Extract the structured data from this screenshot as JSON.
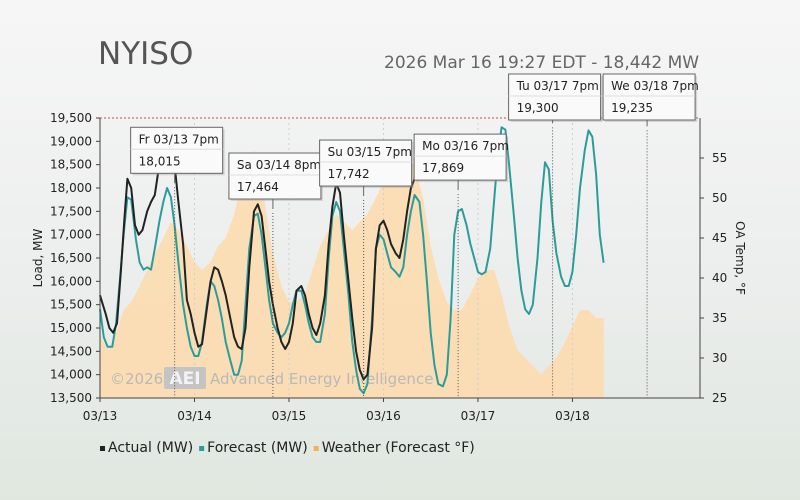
{
  "header": {
    "title": "NYISO",
    "subtitle": "2026 Mar 16 19:27 EDT - 18,442 MW"
  },
  "watermark": {
    "copyright": "©2026",
    "logo_text": "AEI",
    "company": "Advanced Energy Intelligence"
  },
  "chart_data": {
    "type": "line",
    "ylabel": "Load, MW",
    "y2label": "OA Temp, °F",
    "ylim": [
      13500,
      19500
    ],
    "y2lim": [
      25,
      60
    ],
    "y_ticks": [
      "13,500",
      "14,000",
      "14,500",
      "15,000",
      "15,500",
      "16,000",
      "16,500",
      "17,000",
      "17,500",
      "18,000",
      "18,500",
      "19,000",
      "19,500"
    ],
    "y2_ticks": [
      "25",
      "30",
      "35",
      "40",
      "45",
      "50",
      "55"
    ],
    "xlim_days": [
      0,
      6.35
    ],
    "x_ticks": [
      "03/13",
      "03/14",
      "03/15",
      "03/16",
      "03/17",
      "03/18"
    ],
    "legend": [
      {
        "label": "Actual (MW)",
        "color": "#222222"
      },
      {
        "label": "Forecast (MW)",
        "color": "#2a9d9a"
      },
      {
        "label": "Weather (Forecast °F)",
        "color": "#f6b05a"
      }
    ],
    "series": [
      {
        "name": "Actual (MW)",
        "color": "#222222",
        "points": [
          [
            0.0,
            15700
          ],
          [
            0.06,
            15300
          ],
          [
            0.1,
            15000
          ],
          [
            0.14,
            14900
          ],
          [
            0.18,
            15100
          ],
          [
            0.22,
            16200
          ],
          [
            0.26,
            17400
          ],
          [
            0.29,
            18200
          ],
          [
            0.33,
            18000
          ],
          [
            0.37,
            17200
          ],
          [
            0.41,
            17000
          ],
          [
            0.45,
            17100
          ],
          [
            0.5,
            17500
          ],
          [
            0.54,
            17700
          ],
          [
            0.58,
            17850
          ],
          [
            0.62,
            18400
          ],
          [
            0.67,
            18800
          ],
          [
            0.71,
            19000
          ],
          [
            0.75,
            19000
          ],
          [
            0.79,
            18500
          ],
          [
            0.83,
            17700
          ],
          [
            0.88,
            16800
          ],
          [
            0.92,
            15600
          ],
          [
            0.96,
            15300
          ],
          [
            1.0,
            14900
          ],
          [
            1.04,
            14600
          ],
          [
            1.08,
            14650
          ],
          [
            1.13,
            15400
          ],
          [
            1.17,
            16000
          ],
          [
            1.21,
            16300
          ],
          [
            1.25,
            16250
          ],
          [
            1.29,
            16000
          ],
          [
            1.33,
            15700
          ],
          [
            1.38,
            15200
          ],
          [
            1.42,
            14800
          ],
          [
            1.46,
            14600
          ],
          [
            1.5,
            14550
          ],
          [
            1.54,
            15000
          ],
          [
            1.58,
            16300
          ],
          [
            1.63,
            17500
          ],
          [
            1.67,
            17650
          ],
          [
            1.71,
            17400
          ],
          [
            1.75,
            16700
          ],
          [
            1.79,
            16000
          ],
          [
            1.83,
            15500
          ],
          [
            1.88,
            15000
          ],
          [
            1.92,
            14700
          ],
          [
            1.96,
            14550
          ],
          [
            2.0,
            14700
          ],
          [
            2.04,
            15100
          ],
          [
            2.08,
            15800
          ],
          [
            2.13,
            15900
          ],
          [
            2.17,
            15700
          ],
          [
            2.21,
            15300
          ],
          [
            2.25,
            15000
          ],
          [
            2.29,
            14850
          ],
          [
            2.33,
            15100
          ],
          [
            2.38,
            15700
          ],
          [
            2.42,
            16800
          ],
          [
            2.46,
            17600
          ],
          [
            2.5,
            18100
          ],
          [
            2.54,
            17900
          ],
          [
            2.58,
            17000
          ],
          [
            2.63,
            16000
          ],
          [
            2.67,
            15200
          ],
          [
            2.71,
            14500
          ],
          [
            2.75,
            14100
          ],
          [
            2.79,
            13900
          ],
          [
            2.83,
            14000
          ],
          [
            2.88,
            15000
          ],
          [
            2.92,
            16700
          ],
          [
            2.96,
            17200
          ],
          [
            3.0,
            17300
          ],
          [
            3.04,
            17100
          ],
          [
            3.08,
            16800
          ],
          [
            3.13,
            16600
          ],
          [
            3.17,
            16500
          ],
          [
            3.21,
            16900
          ],
          [
            3.25,
            17500
          ],
          [
            3.29,
            18000
          ],
          [
            3.33,
            18200
          ],
          [
            3.36,
            18442
          ]
        ]
      },
      {
        "name": "Forecast (MW)",
        "color": "#2a9d9a",
        "points": [
          [
            0.0,
            15400
          ],
          [
            0.04,
            14800
          ],
          [
            0.08,
            14600
          ],
          [
            0.13,
            14600
          ],
          [
            0.17,
            15100
          ],
          [
            0.21,
            16000
          ],
          [
            0.25,
            17000
          ],
          [
            0.29,
            17800
          ],
          [
            0.33,
            17750
          ],
          [
            0.38,
            16900
          ],
          [
            0.42,
            16400
          ],
          [
            0.46,
            16250
          ],
          [
            0.5,
            16300
          ],
          [
            0.54,
            16250
          ],
          [
            0.58,
            16700
          ],
          [
            0.63,
            17300
          ],
          [
            0.67,
            17700
          ],
          [
            0.71,
            18000
          ],
          [
            0.75,
            17800
          ],
          [
            0.79,
            17200
          ],
          [
            0.83,
            16400
          ],
          [
            0.88,
            15500
          ],
          [
            0.92,
            15000
          ],
          [
            0.96,
            14600
          ],
          [
            1.0,
            14400
          ],
          [
            1.04,
            14400
          ],
          [
            1.08,
            14700
          ],
          [
            1.13,
            15500
          ],
          [
            1.17,
            16000
          ],
          [
            1.21,
            15900
          ],
          [
            1.25,
            15600
          ],
          [
            1.29,
            15200
          ],
          [
            1.33,
            14700
          ],
          [
            1.38,
            14300
          ],
          [
            1.42,
            14000
          ],
          [
            1.46,
            14000
          ],
          [
            1.5,
            14300
          ],
          [
            1.54,
            15500
          ],
          [
            1.58,
            16700
          ],
          [
            1.63,
            17400
          ],
          [
            1.67,
            17450
          ],
          [
            1.71,
            17000
          ],
          [
            1.75,
            16300
          ],
          [
            1.79,
            15600
          ],
          [
            1.83,
            15100
          ],
          [
            1.88,
            14900
          ],
          [
            1.92,
            14800
          ],
          [
            1.96,
            14900
          ],
          [
            2.0,
            15100
          ],
          [
            2.04,
            15500
          ],
          [
            2.08,
            15800
          ],
          [
            2.13,
            15800
          ],
          [
            2.17,
            15500
          ],
          [
            2.21,
            15100
          ],
          [
            2.25,
            14800
          ],
          [
            2.29,
            14700
          ],
          [
            2.33,
            14700
          ],
          [
            2.38,
            15300
          ],
          [
            2.42,
            16500
          ],
          [
            2.46,
            17400
          ],
          [
            2.5,
            17700
          ],
          [
            2.54,
            17500
          ],
          [
            2.58,
            16700
          ],
          [
            2.63,
            15700
          ],
          [
            2.67,
            14700
          ],
          [
            2.71,
            14100
          ],
          [
            2.75,
            13700
          ],
          [
            2.79,
            13600
          ],
          [
            2.83,
            13800
          ],
          [
            2.88,
            15200
          ],
          [
            2.92,
            16700
          ],
          [
            2.96,
            17000
          ],
          [
            3.0,
            16900
          ],
          [
            3.04,
            16600
          ],
          [
            3.08,
            16300
          ],
          [
            3.13,
            16200
          ],
          [
            3.17,
            16100
          ],
          [
            3.21,
            16300
          ],
          [
            3.25,
            17000
          ],
          [
            3.29,
            17500
          ],
          [
            3.33,
            17850
          ],
          [
            3.38,
            17700
          ],
          [
            3.42,
            17000
          ],
          [
            3.46,
            16000
          ],
          [
            3.5,
            14900
          ],
          [
            3.54,
            14200
          ],
          [
            3.58,
            13800
          ],
          [
            3.63,
            13750
          ],
          [
            3.67,
            14000
          ],
          [
            3.71,
            15200
          ],
          [
            3.75,
            17000
          ],
          [
            3.79,
            17500
          ],
          [
            3.83,
            17550
          ],
          [
            3.88,
            17200
          ],
          [
            3.92,
            16800
          ],
          [
            3.96,
            16500
          ],
          [
            4.0,
            16200
          ],
          [
            4.04,
            16150
          ],
          [
            4.08,
            16200
          ],
          [
            4.13,
            16700
          ],
          [
            4.17,
            17700
          ],
          [
            4.21,
            18700
          ],
          [
            4.25,
            19300
          ],
          [
            4.29,
            19250
          ],
          [
            4.33,
            18500
          ],
          [
            4.38,
            17400
          ],
          [
            4.42,
            16500
          ],
          [
            4.46,
            15800
          ],
          [
            4.5,
            15400
          ],
          [
            4.54,
            15300
          ],
          [
            4.58,
            15500
          ],
          [
            4.63,
            16500
          ],
          [
            4.67,
            17700
          ],
          [
            4.71,
            18550
          ],
          [
            4.75,
            18400
          ],
          [
            4.79,
            17300
          ],
          [
            4.83,
            16600
          ],
          [
            4.88,
            16100
          ],
          [
            4.92,
            15900
          ],
          [
            4.96,
            15900
          ],
          [
            5.0,
            16200
          ],
          [
            5.04,
            17000
          ],
          [
            5.08,
            18000
          ],
          [
            5.13,
            18800
          ],
          [
            5.17,
            19235
          ],
          [
            5.21,
            19100
          ],
          [
            5.25,
            18300
          ],
          [
            5.29,
            17000
          ],
          [
            5.33,
            16400
          ]
        ]
      },
      {
        "name": "Weather (Forecast °F)",
        "color": "#f6b05a",
        "points": [
          [
            0.0,
            33
          ],
          [
            0.08,
            31
          ],
          [
            0.17,
            33
          ],
          [
            0.25,
            36
          ],
          [
            0.33,
            37
          ],
          [
            0.42,
            39
          ],
          [
            0.5,
            41
          ],
          [
            0.58,
            43
          ],
          [
            0.67,
            45
          ],
          [
            0.75,
            47
          ],
          [
            0.83,
            46
          ],
          [
            0.92,
            44
          ],
          [
            1.0,
            42
          ],
          [
            1.08,
            41
          ],
          [
            1.17,
            42
          ],
          [
            1.25,
            44
          ],
          [
            1.33,
            45
          ],
          [
            1.42,
            48
          ],
          [
            1.5,
            52
          ],
          [
            1.58,
            54
          ],
          [
            1.63,
            56
          ],
          [
            1.67,
            55
          ],
          [
            1.75,
            49
          ],
          [
            1.83,
            43
          ],
          [
            1.92,
            39
          ],
          [
            2.0,
            37
          ],
          [
            2.08,
            37
          ],
          [
            2.17,
            38
          ],
          [
            2.25,
            41
          ],
          [
            2.33,
            44
          ],
          [
            2.42,
            46
          ],
          [
            2.5,
            48
          ],
          [
            2.58,
            47
          ],
          [
            2.67,
            46
          ],
          [
            2.75,
            47
          ],
          [
            2.83,
            48
          ],
          [
            2.92,
            50
          ],
          [
            3.0,
            52
          ],
          [
            3.08,
            54
          ],
          [
            3.17,
            55
          ],
          [
            3.25,
            55
          ],
          [
            3.33,
            54
          ],
          [
            3.42,
            50
          ],
          [
            3.5,
            44
          ],
          [
            3.58,
            40
          ],
          [
            3.67,
            37
          ],
          [
            3.75,
            36
          ],
          [
            3.83,
            36
          ],
          [
            3.92,
            38
          ],
          [
            4.0,
            40
          ],
          [
            4.08,
            41
          ],
          [
            4.17,
            41
          ],
          [
            4.25,
            38
          ],
          [
            4.33,
            34
          ],
          [
            4.42,
            31
          ],
          [
            4.5,
            30
          ],
          [
            4.58,
            29
          ],
          [
            4.67,
            28
          ],
          [
            4.75,
            29
          ],
          [
            4.83,
            30
          ],
          [
            4.92,
            32
          ],
          [
            5.0,
            34
          ],
          [
            5.08,
            36
          ],
          [
            5.17,
            36
          ],
          [
            5.25,
            35
          ],
          [
            5.33,
            35
          ]
        ]
      }
    ],
    "callouts": [
      {
        "label": "Fr 03/13 7pm",
        "value": "18,015",
        "label_color": "#333333",
        "x": 0.79,
        "y": 18015
      },
      {
        "label": "Sa 03/14 8pm",
        "value": "17,464",
        "label_color": "#333333",
        "x": 1.83,
        "y": 17464
      },
      {
        "label": "Su 03/15 7pm",
        "value": "17,742",
        "label_color": "#333333",
        "x": 2.79,
        "y": 17742
      },
      {
        "label": "Mo 03/16 7pm",
        "value": "17,869",
        "label_color": "#cc1111",
        "x": 3.79,
        "y": 17869
      },
      {
        "label": "Tu 03/17 7pm",
        "value": "19,300",
        "label_color": "#333333",
        "x": 4.79,
        "y": 19300
      },
      {
        "label": "We 03/18 7pm",
        "value": "19,235",
        "label_color": "#333333",
        "x": 5.79,
        "y": 19235
      }
    ]
  }
}
